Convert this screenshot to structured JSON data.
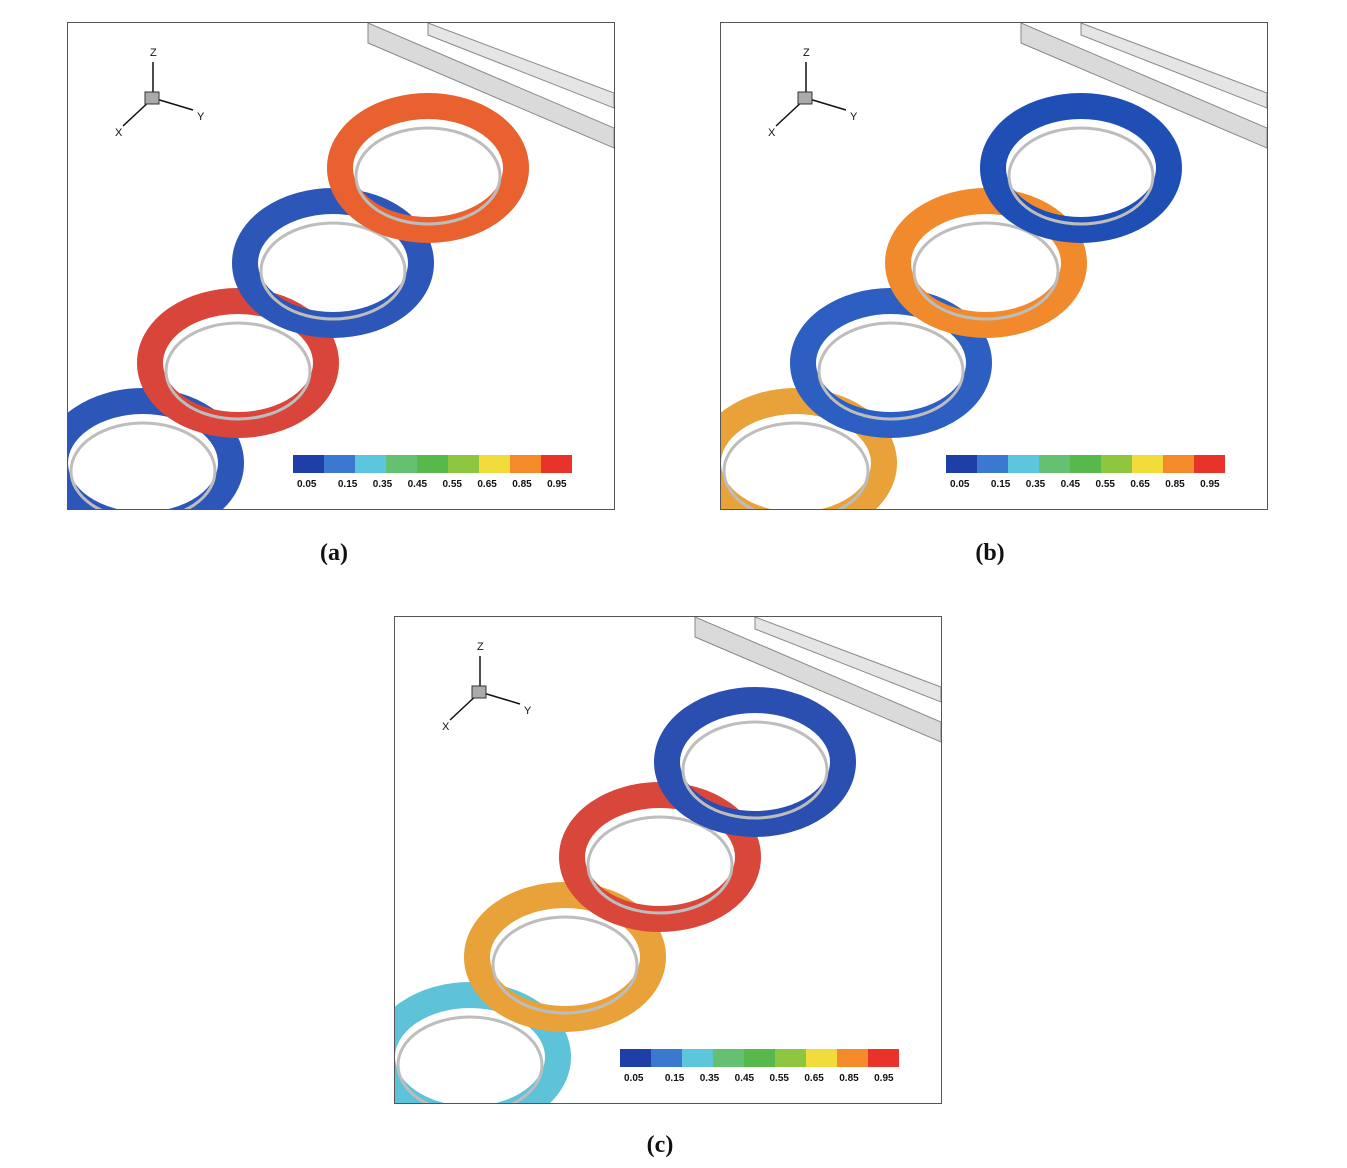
{
  "figure": {
    "panels": [
      {
        "id": "a",
        "caption": "(a)",
        "visible_rings": 4,
        "ring_colors": [
          "#2c57b8",
          "#d9453a",
          "#2c57b8",
          "#e8612f"
        ]
      },
      {
        "id": "b",
        "caption": "(b)",
        "visible_rings": 4,
        "ring_colors": [
          "#e9a23a",
          "#2c5fc1",
          "#f08a2c",
          "#1f4fb5"
        ]
      },
      {
        "id": "c",
        "caption": "(c)",
        "visible_rings": 4,
        "ring_colors": [
          "#5ec3d9",
          "#e9a23a",
          "#d9473a",
          "#2a4fb0"
        ]
      }
    ],
    "axis_triad": {
      "z": "Z",
      "y": "Y",
      "x": "X"
    },
    "colorbar": {
      "ticks": [
        "0.05",
        "0.15",
        "0.35",
        "0.45",
        "0.55",
        "0.65",
        "0.85",
        "0.95"
      ],
      "colors": [
        "#1f3fa8",
        "#3b78cf",
        "#5cc6dc",
        "#66c071",
        "#57b84b",
        "#8ec63f",
        "#f2dc3b",
        "#f48a2a",
        "#e8322a"
      ]
    }
  }
}
